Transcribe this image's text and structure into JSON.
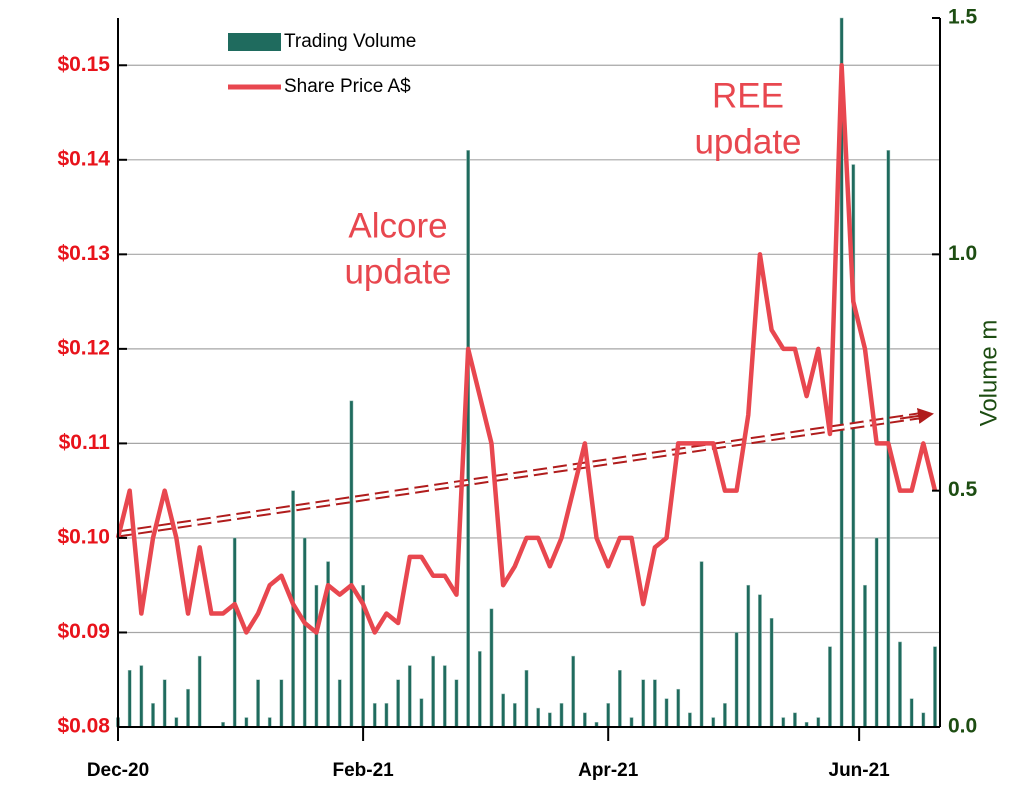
{
  "chart_data": {
    "type": "bar-line",
    "y2_label": "Volume m",
    "x": [
      0,
      1,
      2,
      3,
      4,
      5,
      6,
      7,
      8,
      9,
      10,
      11,
      12,
      13,
      14,
      15,
      16,
      17,
      18,
      19,
      20,
      21,
      22,
      23,
      24,
      25,
      26,
      27,
      28,
      29,
      30,
      31,
      32,
      33,
      34,
      35,
      36,
      37,
      38,
      39,
      40,
      41,
      42,
      43,
      44,
      45,
      46,
      47,
      48,
      49,
      50,
      51,
      52,
      53,
      54,
      55,
      56,
      57,
      58,
      59,
      60,
      61,
      62,
      63,
      64,
      65,
      66,
      67,
      68,
      69,
      70
    ],
    "xlim": [
      0,
      70
    ],
    "xticks": [
      {
        "value": 0,
        "label": "Dec-20"
      },
      {
        "value": 21,
        "label": "Feb-21"
      },
      {
        "value": 42,
        "label": "Apr-21"
      },
      {
        "value": 63.5,
        "label": "Jun-21"
      }
    ],
    "ylim": [
      0.08,
      0.155
    ],
    "yticks": [
      {
        "value": 0.08,
        "label": "$0.08"
      },
      {
        "value": 0.09,
        "label": "$0.09"
      },
      {
        "value": 0.1,
        "label": "$0.10"
      },
      {
        "value": 0.11,
        "label": "$0.11"
      },
      {
        "value": 0.12,
        "label": "$0.12"
      },
      {
        "value": 0.13,
        "label": "$0.13"
      },
      {
        "value": 0.14,
        "label": "$0.14"
      },
      {
        "value": 0.15,
        "label": "$0.15"
      }
    ],
    "y2lim": [
      0,
      1.5
    ],
    "y2ticks": [
      {
        "value": 0,
        "label": "0.0"
      },
      {
        "value": 0.5,
        "label": "0.5"
      },
      {
        "value": 1,
        "label": "1.0"
      },
      {
        "value": 1.5,
        "label": "1.5"
      }
    ],
    "grid": true,
    "series": [
      {
        "name": "Trading Volume",
        "type": "bar",
        "axis": "y2",
        "color": "#1f6b5e",
        "values": [
          0.02,
          0.12,
          0.13,
          0.05,
          0.1,
          0.02,
          0.08,
          0.15,
          0,
          0.01,
          0.4,
          0.02,
          0.1,
          0.02,
          0.1,
          0.5,
          0.4,
          0.3,
          0.35,
          0.1,
          0.69,
          0.3,
          0.05,
          0.05,
          0.1,
          0.13,
          0.06,
          0.15,
          0.13,
          0.1,
          1.22,
          0.16,
          0.25,
          0.07,
          0.05,
          0.12,
          0.04,
          0.03,
          0.05,
          0.15,
          0.03,
          0.01,
          0.05,
          0.12,
          0.02,
          0.1,
          0.1,
          0.06,
          0.08,
          0.03,
          0.35,
          0.02,
          0.05,
          0.2,
          0.3,
          0.28,
          0.23,
          0.02,
          0.03,
          0.01,
          0.02,
          0.17,
          1.5,
          1.19,
          0.3,
          0.4,
          1.22,
          0.18,
          0.06,
          0.03,
          0.17
        ]
      },
      {
        "name": "Share Price A$",
        "type": "line",
        "color": "#e8474f",
        "values": [
          0.1,
          0.105,
          0.092,
          0.1,
          0.105,
          0.1,
          0.092,
          0.099,
          0.092,
          0.092,
          0.093,
          0.09,
          0.092,
          0.095,
          0.096,
          0.093,
          0.091,
          0.09,
          0.095,
          0.094,
          0.095,
          0.093,
          0.09,
          0.092,
          0.091,
          0.098,
          0.098,
          0.096,
          0.096,
          0.094,
          0.12,
          0.115,
          0.11,
          0.095,
          0.097,
          0.1,
          0.1,
          0.097,
          0.1,
          0.105,
          0.11,
          0.1,
          0.097,
          0.1,
          0.1,
          0.093,
          0.099,
          0.1,
          0.11,
          0.11,
          0.11,
          0.11,
          0.105,
          0.105,
          0.113,
          0.13,
          0.122,
          0.12,
          0.12,
          0.115,
          0.12,
          0.111,
          0.15,
          0.125,
          0.12,
          0.11,
          0.11,
          0.105,
          0.105,
          0.11,
          0.105
        ]
      }
    ],
    "annotations": [
      {
        "lines": [
          "Alcore",
          "update"
        ]
      },
      {
        "lines": [
          "REE",
          "update"
        ]
      }
    ]
  }
}
